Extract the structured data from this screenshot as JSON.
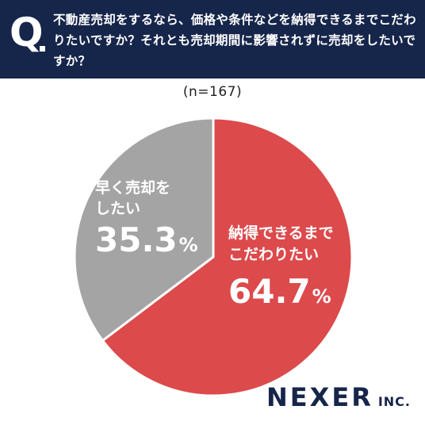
{
  "header": {
    "q_mark": "Q",
    "question": "不動産売却をするなら、価格や条件などを納得できるまでこだわりたいですか？それとも売却期間に影響されずに売却をしたいですか？"
  },
  "sample_size": "(n=167)",
  "brand": {
    "main": "NEXER",
    "sub": "INC."
  },
  "colors": {
    "header_bg": "#16254a",
    "slice_red": "#dc4a4c",
    "slice_gray": "#a4a4a4"
  },
  "chart_data": {
    "type": "pie",
    "start": "top",
    "direction": "clockwise",
    "slices": [
      {
        "label_lines": [
          "納得できるまで",
          "こだわりたい"
        ],
        "value": 64.7,
        "value_text": "64.7",
        "unit": "%",
        "color": "#dc4a4c"
      },
      {
        "label_lines": [
          "早く売却を",
          "したい"
        ],
        "value": 35.3,
        "value_text": "35.3",
        "unit": "%",
        "color": "#a4a4a4"
      }
    ]
  }
}
